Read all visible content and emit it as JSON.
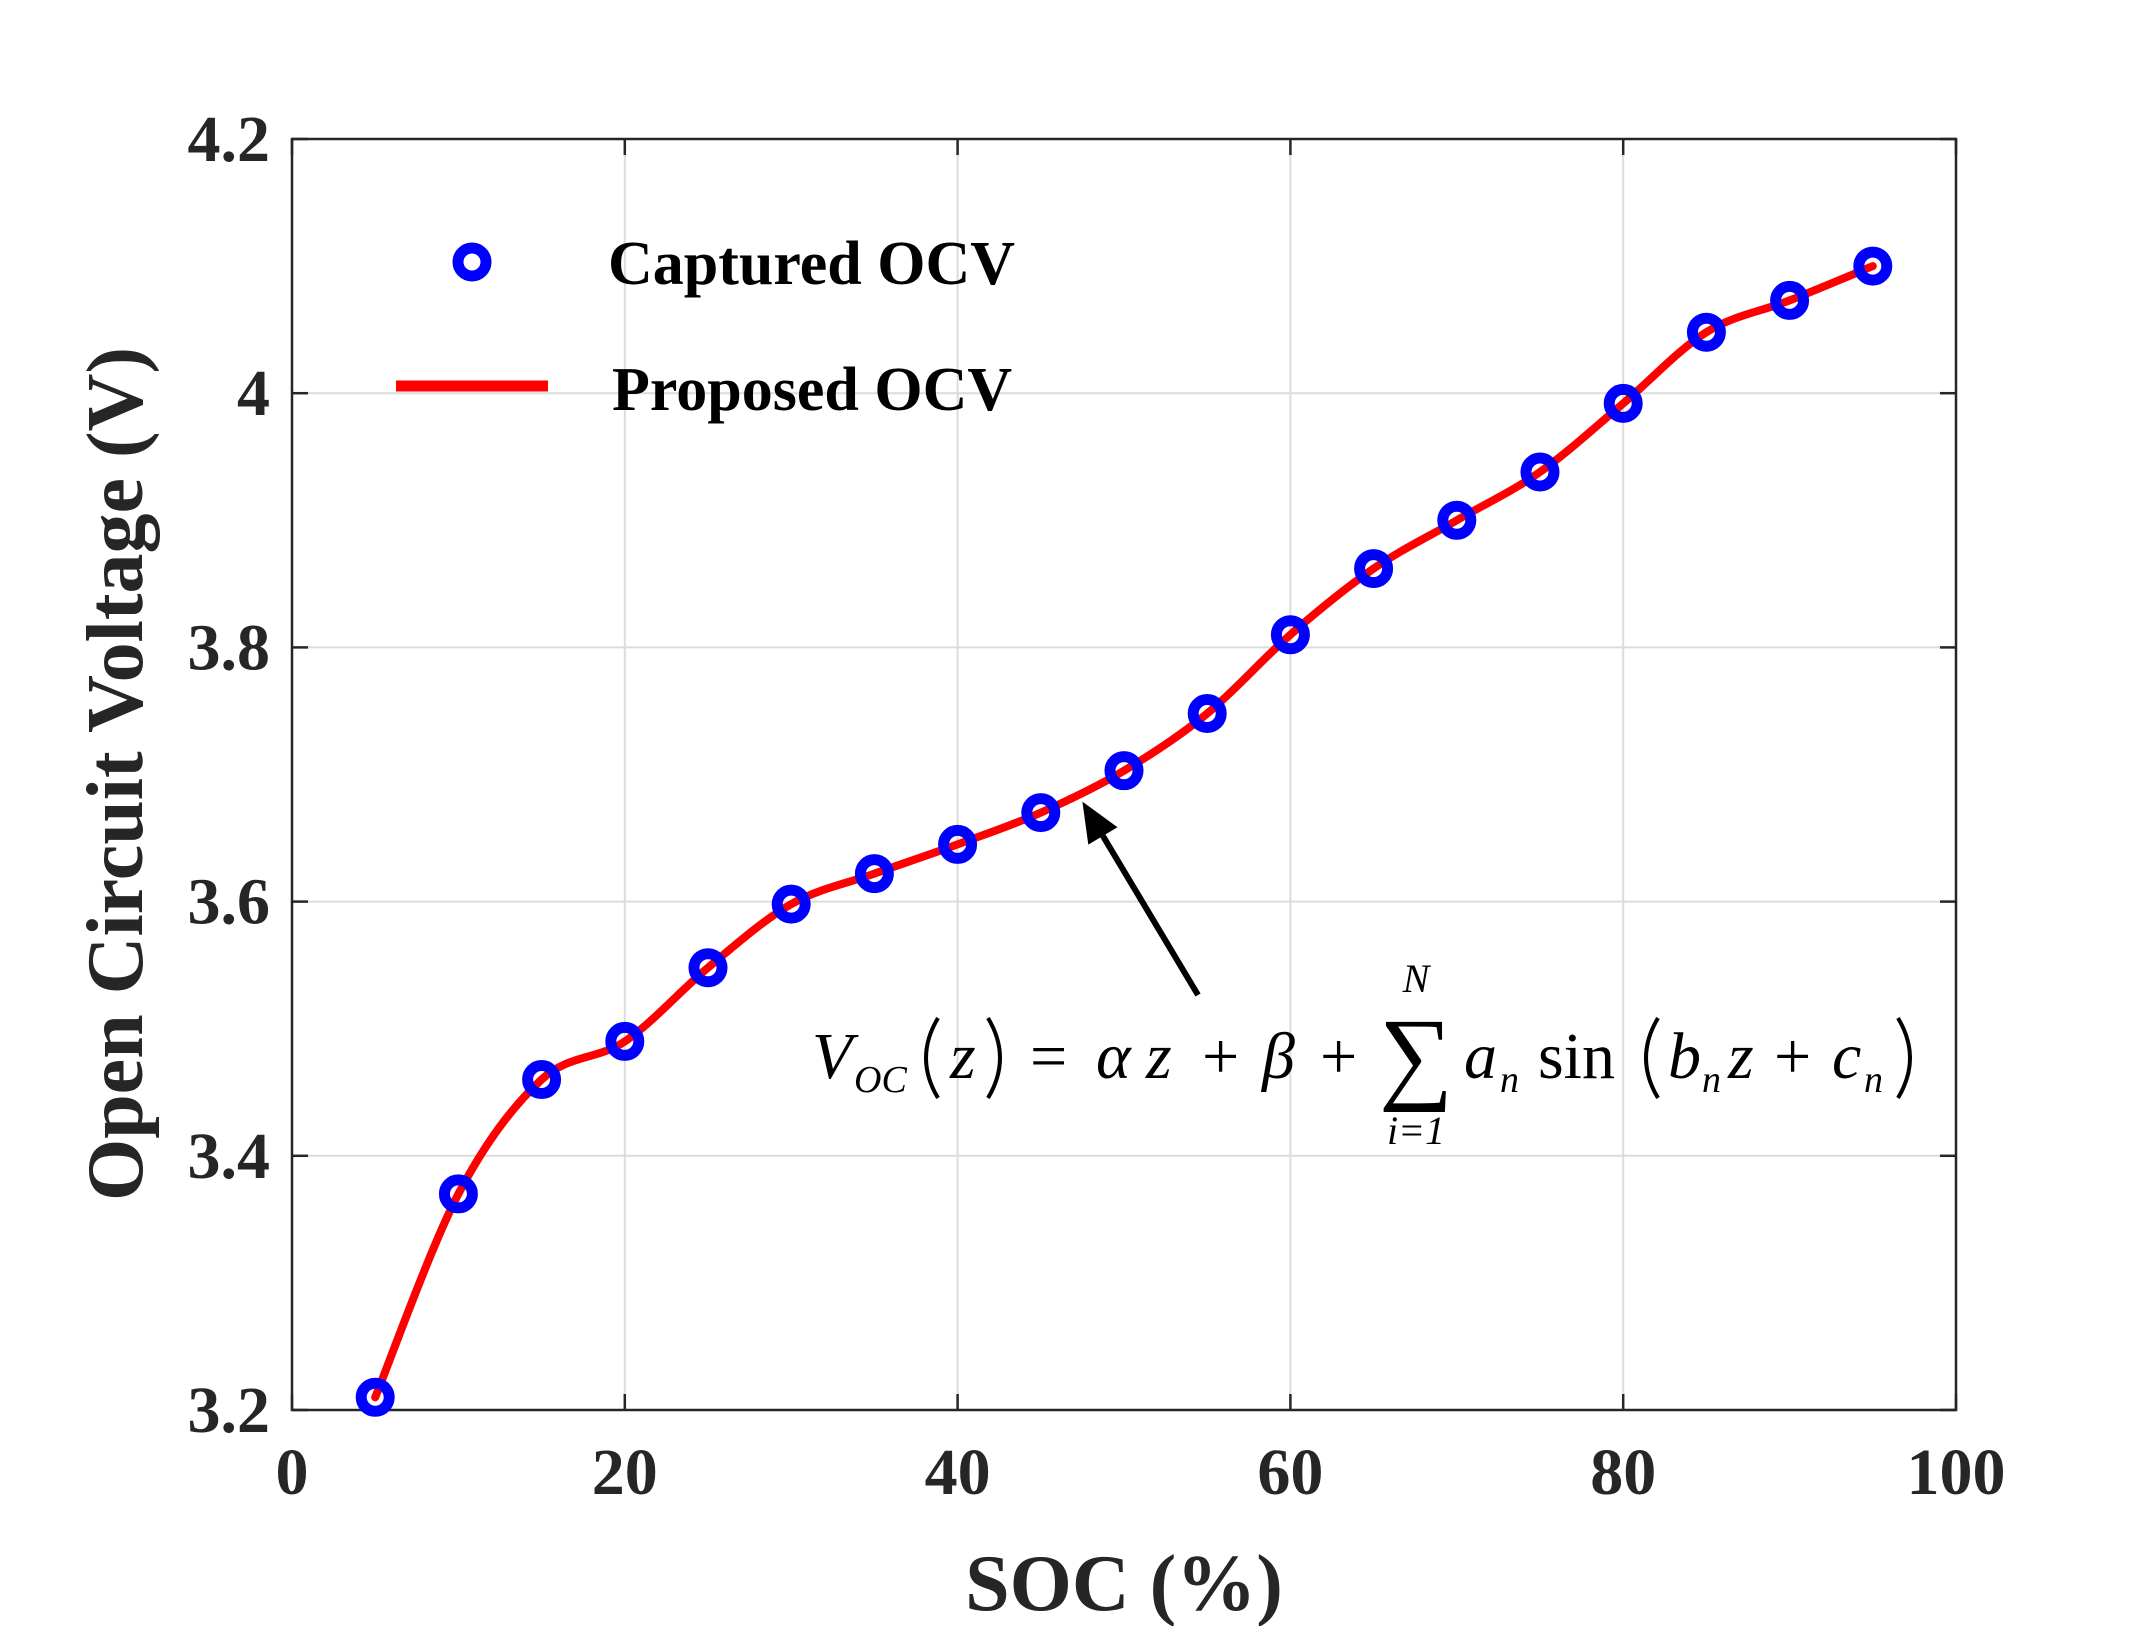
{
  "chart_data": {
    "type": "line",
    "xlabel": "SOC (%)",
    "ylabel": "Open Circuit Voltage (V)",
    "xlim": [
      0,
      100
    ],
    "ylim": [
      3.2,
      4.2
    ],
    "grid": true,
    "x_ticks": [
      0,
      20,
      40,
      60,
      80,
      100
    ],
    "x_tick_labels": [
      "0",
      "20",
      "40",
      "60",
      "80",
      "100"
    ],
    "y_ticks": [
      3.2,
      3.4,
      3.6,
      3.8,
      4.0,
      4.2
    ],
    "y_tick_labels": [
      "3.2",
      "3.4",
      "3.6",
      "3.8",
      "4",
      "4.2"
    ],
    "legend_position": "top-left",
    "series": [
      {
        "name": "Captured OCV",
        "style": "markers",
        "color": "#0000ff",
        "x": [
          5,
          10,
          15,
          20,
          25,
          30,
          35,
          40,
          45,
          50,
          55,
          60,
          65,
          70,
          75,
          80,
          85,
          90,
          95
        ],
        "values": [
          3.21,
          3.37,
          3.46,
          3.49,
          3.548,
          3.598,
          3.622,
          3.645,
          3.67,
          3.703,
          3.748,
          3.81,
          3.862,
          3.9,
          3.938,
          3.992,
          4.048,
          4.073,
          4.1
        ]
      },
      {
        "name": "Proposed OCV",
        "style": "line",
        "color": "#ff0000",
        "x": [
          5,
          10,
          15,
          20,
          25,
          30,
          35,
          40,
          45,
          50,
          55,
          60,
          65,
          70,
          75,
          80,
          85,
          90,
          95
        ],
        "values": [
          3.21,
          3.37,
          3.46,
          3.49,
          3.548,
          3.598,
          3.622,
          3.645,
          3.67,
          3.703,
          3.748,
          3.81,
          3.862,
          3.9,
          3.938,
          3.992,
          4.048,
          4.073,
          4.1
        ]
      }
    ],
    "annotation": {
      "target_x": 47.5,
      "target_y": 3.685,
      "equation": {
        "V": "V",
        "oc_sub": "OC",
        "z": "z",
        "eq": "=",
        "alpha": "α",
        "plus": "+",
        "beta": "β",
        "sigma": "∑",
        "upper": "N",
        "lower": "i=1",
        "a": "a",
        "n": "n",
        "sin": "sin",
        "b": "b",
        "c": "c"
      }
    }
  }
}
